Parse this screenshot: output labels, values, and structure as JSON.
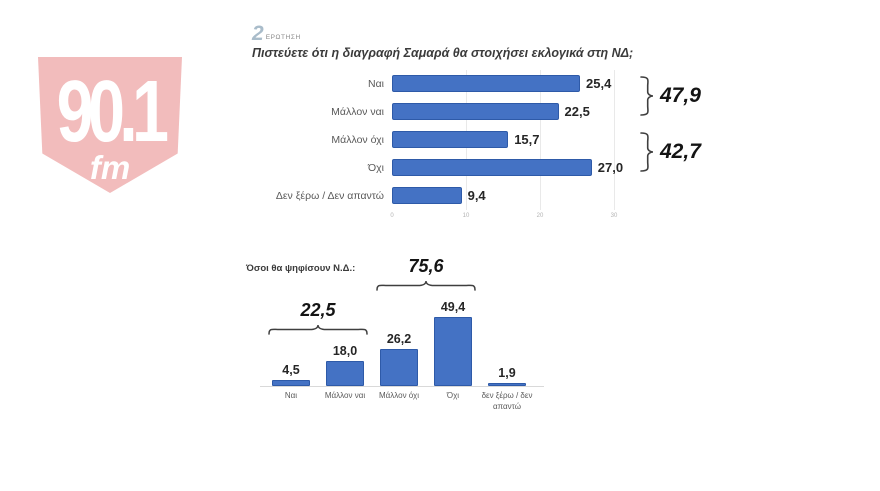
{
  "logo": {
    "frequency": "90.1",
    "band": "fm",
    "badge_color": "#f2bcbc",
    "text_color": "#ffffff"
  },
  "question_badge": {
    "number": "2",
    "label": "ΕΡΩΤΗΣΗ",
    "number_color": "#a9bcca"
  },
  "colors": {
    "bar": "#4472c4",
    "bar_border": "#2e5aa8",
    "gridline": "#e9e9e9",
    "brace": "#3f3f3f"
  },
  "chart_data": [
    {
      "type": "bar",
      "orientation": "horizontal",
      "title": "Πιστεύετε ότι η διαγραφή Σαμαρά θα στοιχήσει εκλογικά στη ΝΔ;",
      "categories": [
        "Ναι",
        "Μάλλον ναι",
        "Μάλλον όχι",
        "Όχι",
        "Δεν ξέρω / Δεν απαντώ"
      ],
      "values": [
        25.4,
        22.5,
        15.7,
        27.0,
        9.4
      ],
      "value_labels": [
        "25,4",
        "22,5",
        "15,7",
        "27,0",
        "9,4"
      ],
      "xlim": [
        0,
        30
      ],
      "x_ticks": [
        0,
        10,
        20,
        30
      ],
      "grid": true,
      "legend": false,
      "braces": [
        {
          "label": "47,9",
          "from": 0,
          "to": 1
        },
        {
          "label": "42,7",
          "from": 2,
          "to": 3
        }
      ]
    },
    {
      "type": "bar",
      "orientation": "vertical",
      "title": "Όσοι θα ψηφίσουν Ν.Δ.:",
      "categories": [
        "Ναι",
        "Μάλλον ναι",
        "Μάλλον όχι",
        "Όχι",
        "δεν ξέρω / δεν απαντώ"
      ],
      "values": [
        4.5,
        18.0,
        26.2,
        49.4,
        1.9
      ],
      "value_labels": [
        "4,5",
        "18,0",
        "26,2",
        "49,4",
        "1,9"
      ],
      "grid": false,
      "legend": false,
      "y_axis_visible": false,
      "braces": [
        {
          "label": "22,5",
          "from": 0,
          "to": 1
        },
        {
          "label": "75,6",
          "from": 2,
          "to": 3
        }
      ]
    }
  ]
}
